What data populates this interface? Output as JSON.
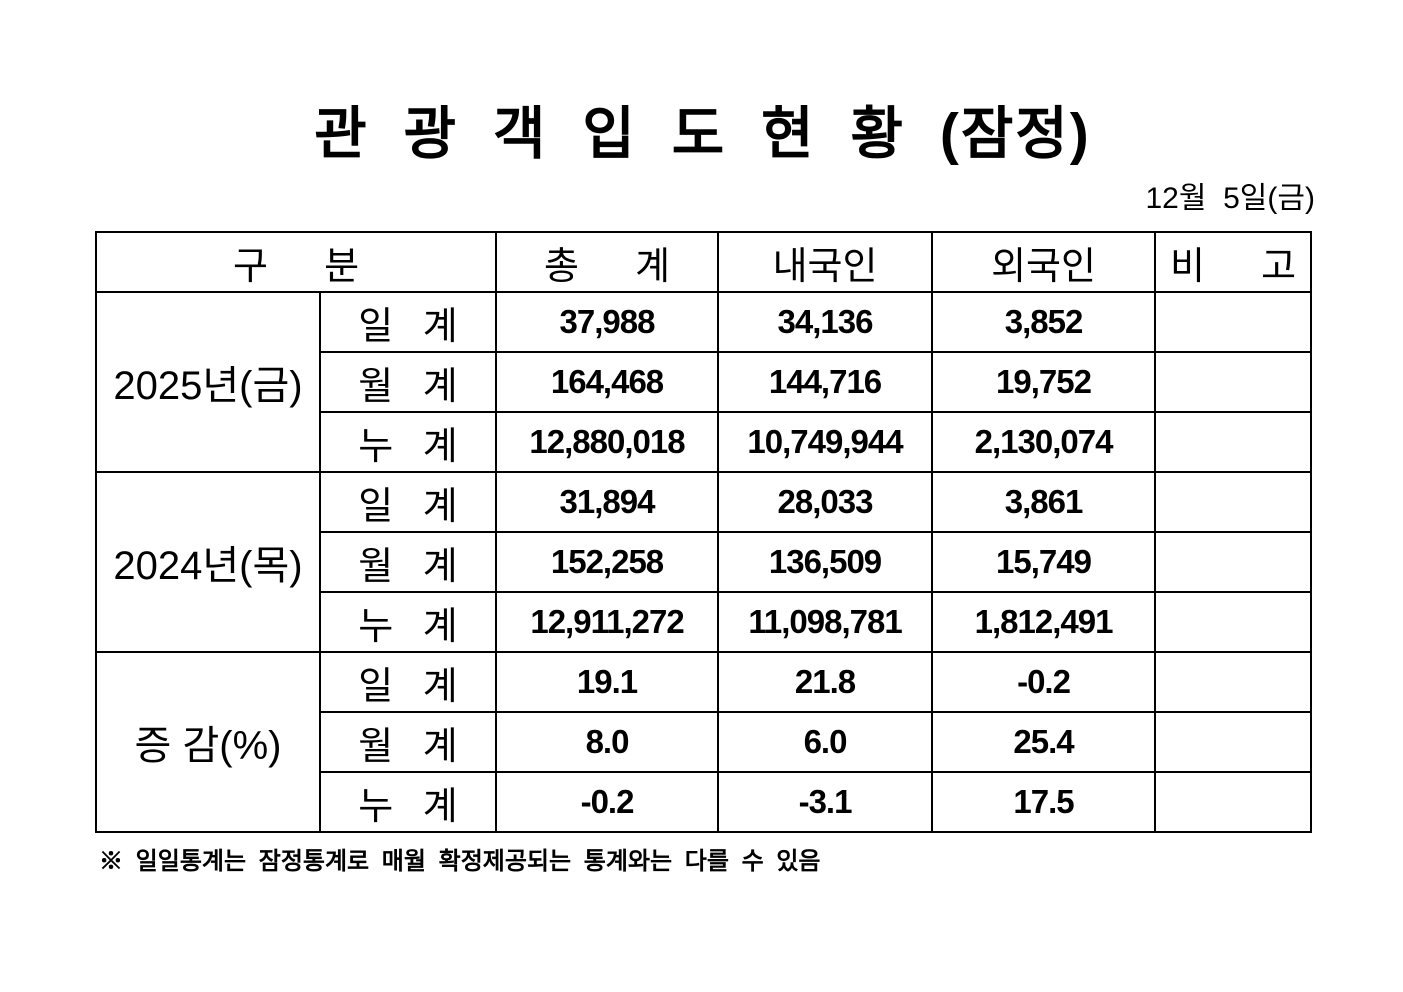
{
  "title": "관 광 객 입 도 현 황 (잠정)",
  "date": "12월  5일(금)",
  "table": {
    "headers": {
      "category": "구 분",
      "total": "총 계",
      "domestic": "내국인",
      "foreign": "외국인",
      "remark": "비 고"
    },
    "groups": [
      {
        "label": "2025년(금)",
        "rows": [
          {
            "label": "일 계",
            "total": "37,988",
            "domestic": "34,136",
            "foreign": "3,852",
            "remark": ""
          },
          {
            "label": "월 계",
            "total": "164,468",
            "domestic": "144,716",
            "foreign": "19,752",
            "remark": ""
          },
          {
            "label": "누 계",
            "total": "12,880,018",
            "domestic": "10,749,944",
            "foreign": "2,130,074",
            "remark": ""
          }
        ]
      },
      {
        "label": "2024년(목)",
        "rows": [
          {
            "label": "일 계",
            "total": "31,894",
            "domestic": "28,033",
            "foreign": "3,861",
            "remark": ""
          },
          {
            "label": "월 계",
            "total": "152,258",
            "domestic": "136,509",
            "foreign": "15,749",
            "remark": ""
          },
          {
            "label": "누 계",
            "total": "12,911,272",
            "domestic": "11,098,781",
            "foreign": "1,812,491",
            "remark": ""
          }
        ]
      },
      {
        "label": "증 감(%)",
        "rows": [
          {
            "label": "일 계",
            "total": "19.1",
            "domestic": "21.8",
            "foreign": "-0.2",
            "remark": ""
          },
          {
            "label": "월 계",
            "total": "8.0",
            "domestic": "6.0",
            "foreign": "25.4",
            "remark": ""
          },
          {
            "label": "누 계",
            "total": "-0.2",
            "domestic": "-3.1",
            "foreign": "17.5",
            "remark": ""
          }
        ]
      }
    ]
  },
  "footnote": "※ 일일통계는 잠정통계로 매월 확정제공되는 통계와는 다를 수 있음"
}
